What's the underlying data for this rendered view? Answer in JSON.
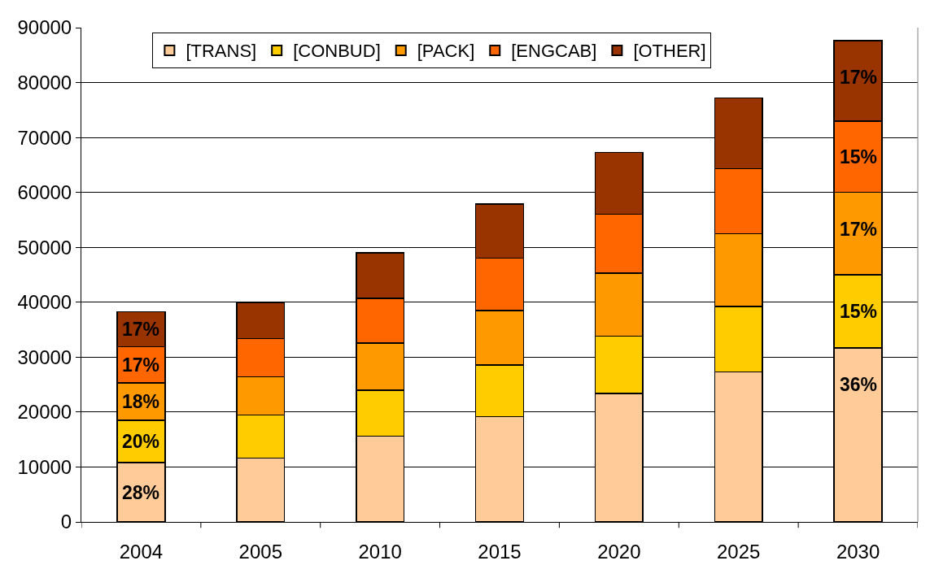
{
  "chart_data": {
    "type": "bar",
    "stacked": true,
    "categories": [
      "2004",
      "2005",
      "2010",
      "2015",
      "2020",
      "2025",
      "2030"
    ],
    "series": [
      {
        "name": "[TRANS]",
        "color": "#ffcc99",
        "values": [
          10800,
          11600,
          15600,
          19200,
          23400,
          27300,
          31700
        ]
      },
      {
        "name": "[CONBUD]",
        "color": "#ffcc00",
        "values": [
          7700,
          7900,
          8400,
          9400,
          10400,
          11900,
          13300
        ]
      },
      {
        "name": "[PACK]",
        "color": "#ff9900",
        "values": [
          6800,
          6900,
          8600,
          9900,
          11500,
          13300,
          15000
        ]
      },
      {
        "name": "[ENGCAB]",
        "color": "#ff6600",
        "values": [
          6600,
          7000,
          8100,
          9500,
          10700,
          11800,
          13000
        ]
      },
      {
        "name": "[OTHER]",
        "color": "#993300",
        "values": [
          6400,
          6600,
          8300,
          9900,
          11300,
          12900,
          14600
        ]
      }
    ],
    "annotations": [
      {
        "text": "28%",
        "x": "2004",
        "y": 10800
      },
      {
        "text": "20%",
        "x": "2004",
        "y": 18500
      },
      {
        "text": "18%",
        "x": "2004",
        "y": 25300
      },
      {
        "text": "17%",
        "x": "2004",
        "y": 31900
      },
      {
        "text": "17%",
        "x": "2004",
        "y": 38300
      },
      {
        "text": "36%",
        "x": "2030",
        "y": 31700
      },
      {
        "text": "15%",
        "x": "2030",
        "y": 45000
      },
      {
        "text": "17%",
        "x": "2030",
        "y": 60000
      },
      {
        "text": "15%",
        "x": "2030",
        "y": 73000
      },
      {
        "text": "17%",
        "x": "2030",
        "y": 87600
      }
    ],
    "ylim": [
      0,
      90000
    ],
    "yticks": [
      0,
      10000,
      20000,
      30000,
      40000,
      50000,
      60000,
      70000,
      80000,
      90000
    ],
    "grid": "y",
    "legend": "top"
  }
}
